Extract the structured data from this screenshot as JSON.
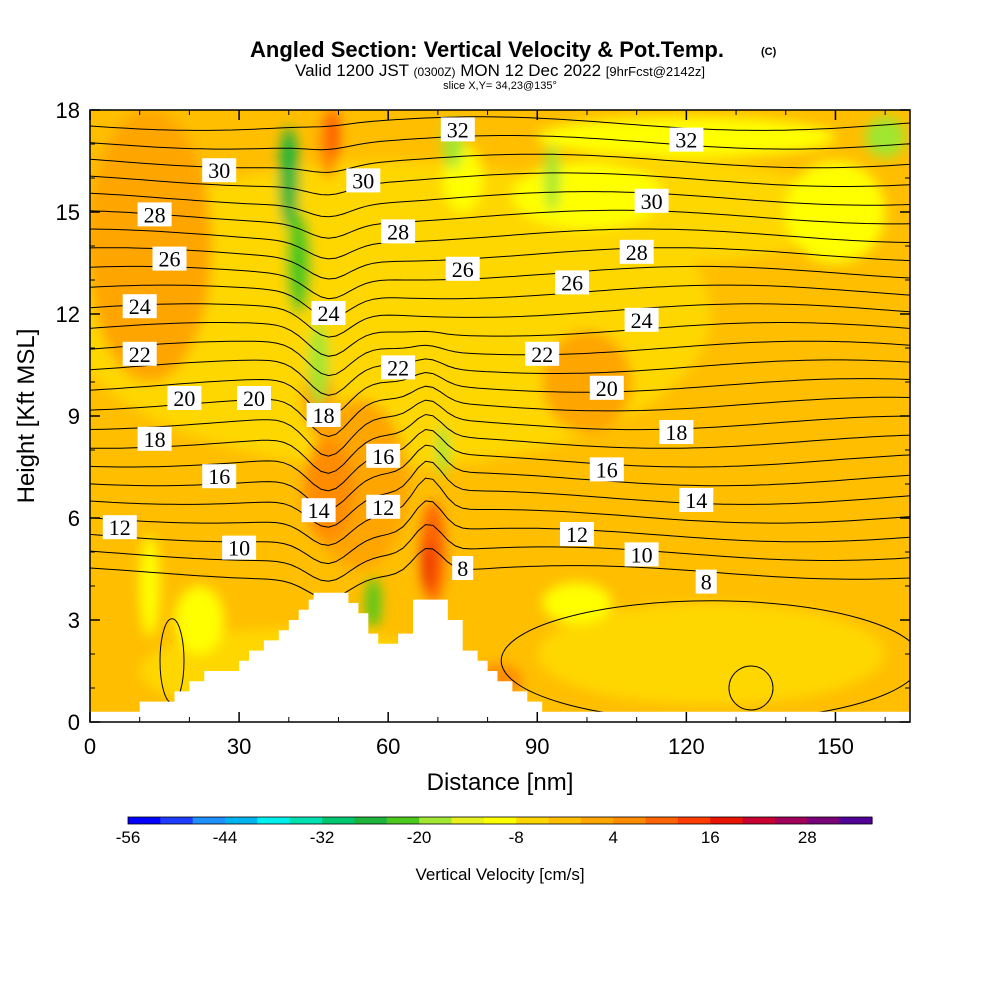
{
  "chart_data": {
    "type": "heatmap",
    "title": {
      "main": "Angled Section: Vertical Velocity & Pot.Temp.",
      "mark": "(C)",
      "valid_prefix": "Valid 1200 JST",
      "valid_z": "(0300Z)",
      "valid_date": "MON 12 Dec 2022",
      "valid_fcst": "[9hrFcst@2142z]",
      "slice": "slice X,Y= 34,23@135°"
    },
    "xlabel": "Distance [nm]",
    "ylabel": "Height [Kft MSL]",
    "xlim": [
      0,
      165
    ],
    "ylim": [
      0,
      18
    ],
    "xticks": [
      "0",
      "30",
      "60",
      "90",
      "120",
      "150"
    ],
    "yticks": [
      "0",
      "3",
      "6",
      "9",
      "12",
      "15",
      "18"
    ],
    "colorbar": {
      "label": "Vertical Velocity [cm/s]",
      "tick_labels": [
        "-56",
        "-44",
        "-32",
        "-20",
        "-8",
        "4",
        "16",
        "28"
      ],
      "colors": [
        "#0000ff",
        "#1e3cff",
        "#1e90ff",
        "#00b4f0",
        "#00f0f0",
        "#00e0b0",
        "#00c870",
        "#1eb43c",
        "#4cc81e",
        "#a0e632",
        "#e6f01e",
        "#ffff00",
        "#ffd700",
        "#ffbe00",
        "#ffa500",
        "#ff8c00",
        "#ff6400",
        "#ff3c00",
        "#e61400",
        "#c80032",
        "#a0005a",
        "#780078",
        "#500096"
      ]
    },
    "field": {
      "shading": "vertical velocity",
      "contours": "potential temperature (°C)",
      "contour_levels": [
        8,
        10,
        12,
        14,
        16,
        18,
        20,
        22,
        24,
        26,
        28,
        30,
        32
      ],
      "contour_labels": [
        {
          "text": "32",
          "x": 74,
          "y": 17.4
        },
        {
          "text": "32",
          "x": 120,
          "y": 17.1
        },
        {
          "text": "30",
          "x": 26,
          "y": 16.2
        },
        {
          "text": "30",
          "x": 55,
          "y": 15.9
        },
        {
          "text": "30",
          "x": 113,
          "y": 15.3
        },
        {
          "text": "28",
          "x": 13,
          "y": 14.9
        },
        {
          "text": "28",
          "x": 62,
          "y": 14.4
        },
        {
          "text": "28",
          "x": 110,
          "y": 13.8
        },
        {
          "text": "26",
          "x": 16,
          "y": 13.6
        },
        {
          "text": "26",
          "x": 75,
          "y": 13.3
        },
        {
          "text": "26",
          "x": 97,
          "y": 12.9
        },
        {
          "text": "24",
          "x": 10,
          "y": 12.2
        },
        {
          "text": "24",
          "x": 48,
          "y": 12.0
        },
        {
          "text": "24",
          "x": 111,
          "y": 11.8
        },
        {
          "text": "22",
          "x": 10,
          "y": 10.8
        },
        {
          "text": "22",
          "x": 62,
          "y": 10.4
        },
        {
          "text": "22",
          "x": 91,
          "y": 10.8
        },
        {
          "text": "20",
          "x": 19,
          "y": 9.5
        },
        {
          "text": "20",
          "x": 33,
          "y": 9.5
        },
        {
          "text": "20",
          "x": 104,
          "y": 9.8
        },
        {
          "text": "18",
          "x": 47,
          "y": 9.0
        },
        {
          "text": "18",
          "x": 13,
          "y": 8.3
        },
        {
          "text": "18",
          "x": 118,
          "y": 8.5
        },
        {
          "text": "16",
          "x": 26,
          "y": 7.2
        },
        {
          "text": "16",
          "x": 59,
          "y": 7.8
        },
        {
          "text": "16",
          "x": 104,
          "y": 7.4
        },
        {
          "text": "14",
          "x": 46,
          "y": 6.2
        },
        {
          "text": "14",
          "x": 122,
          "y": 6.5
        },
        {
          "text": "12",
          "x": 6,
          "y": 5.7
        },
        {
          "text": "12",
          "x": 59,
          "y": 6.3
        },
        {
          "text": "12",
          "x": 98,
          "y": 5.5
        },
        {
          "text": "10",
          "x": 30,
          "y": 5.1
        },
        {
          "text": "10",
          "x": 111,
          "y": 4.9
        },
        {
          "text": "8",
          "x": 75,
          "y": 4.5
        },
        {
          "text": "8",
          "x": 124,
          "y": 4.1
        }
      ]
    },
    "terrain": [
      [
        0,
        0
      ],
      [
        0,
        0.3
      ],
      [
        10,
        0.3
      ],
      [
        10,
        0.6
      ],
      [
        17,
        0.6
      ],
      [
        17,
        0.9
      ],
      [
        20,
        0.9
      ],
      [
        20,
        1.2
      ],
      [
        23,
        1.2
      ],
      [
        23,
        1.5
      ],
      [
        30,
        1.5
      ],
      [
        30,
        1.8
      ],
      [
        32,
        1.8
      ],
      [
        32,
        2.1
      ],
      [
        35,
        2.1
      ],
      [
        35,
        2.4
      ],
      [
        38,
        2.4
      ],
      [
        38,
        2.7
      ],
      [
        40,
        2.7
      ],
      [
        40,
        3.0
      ],
      [
        42,
        3.0
      ],
      [
        42,
        3.3
      ],
      [
        44,
        3.3
      ],
      [
        44,
        3.6
      ],
      [
        45,
        3.6
      ],
      [
        45,
        3.8
      ],
      [
        52,
        3.8
      ],
      [
        52,
        3.5
      ],
      [
        54,
        3.5
      ],
      [
        54,
        3.2
      ],
      [
        56,
        3.2
      ],
      [
        56,
        2.6
      ],
      [
        58,
        2.6
      ],
      [
        58,
        2.3
      ],
      [
        62,
        2.3
      ],
      [
        62,
        2.6
      ],
      [
        65,
        2.6
      ],
      [
        65,
        3.6
      ],
      [
        72,
        3.6
      ],
      [
        72,
        3.0
      ],
      [
        75,
        3.0
      ],
      [
        75,
        2.1
      ],
      [
        78,
        2.1
      ],
      [
        78,
        1.8
      ],
      [
        80,
        1.8
      ],
      [
        80,
        1.5
      ],
      [
        82,
        1.5
      ],
      [
        82,
        1.2
      ],
      [
        85,
        1.2
      ],
      [
        85,
        0.9
      ],
      [
        88,
        0.9
      ],
      [
        88,
        0.6
      ],
      [
        91,
        0.6
      ],
      [
        91,
        0.3
      ],
      [
        165,
        0.3
      ],
      [
        165,
        0
      ]
    ]
  }
}
